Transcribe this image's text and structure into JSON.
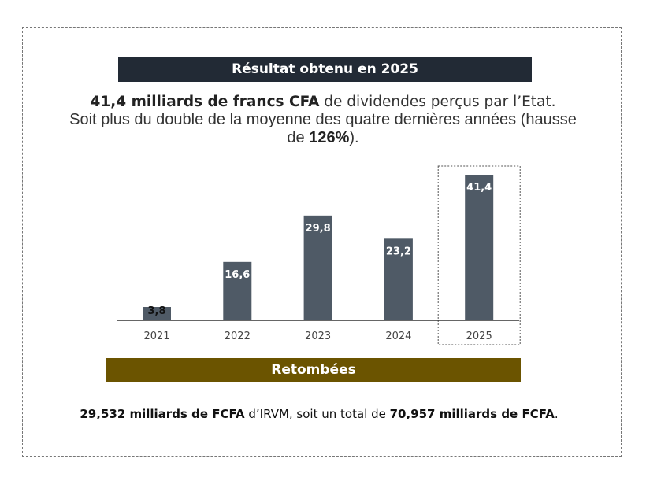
{
  "header": {
    "title": "Résultat obtenu en 2025"
  },
  "lead": {
    "bold1": "41,4 milliards de francs CFA",
    "text1": " de dividendes perçus par l’Etat.",
    "text2": "Soit plus du double de la moyenne des quatre dernières années (hausse de ",
    "bold2": "126%",
    "text3": ")."
  },
  "chart_data": {
    "type": "bar",
    "categories": [
      "2021",
      "2022",
      "2023",
      "2024",
      "2025"
    ],
    "values": [
      3.8,
      16.6,
      29.8,
      23.2,
      41.4
    ],
    "labels": [
      "3,8",
      "16,6",
      "29,8",
      "23,2",
      "41,4"
    ],
    "highlight": "2025",
    "bar_color": "#4f5a66",
    "grid": false,
    "ylim": [
      0,
      42
    ]
  },
  "section2": {
    "title": "Retombées"
  },
  "footer": {
    "bold1": "29,532 milliards de FCFA",
    "text1": " d’IRVM, soit un total de ",
    "bold2": "70,957 milliards de FCFA",
    "text2": "."
  }
}
